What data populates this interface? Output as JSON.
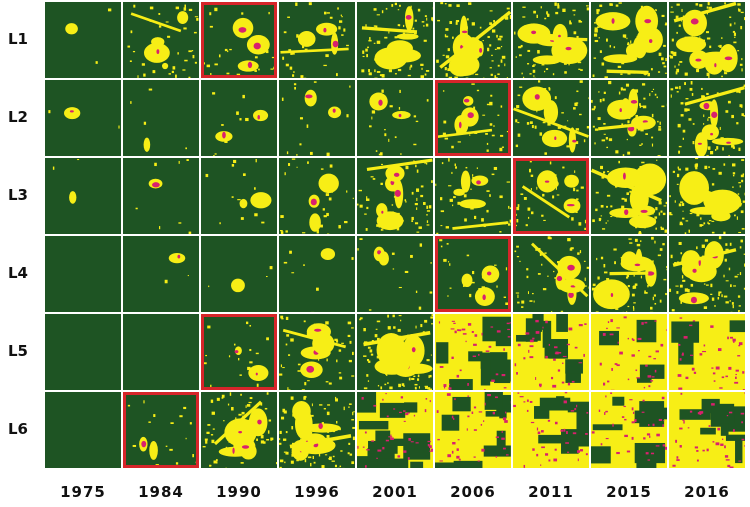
{
  "colors": {
    "forest": "#1e5423",
    "cleared": "#f7ee16",
    "hotspot": "#d9206e",
    "highlight": "#d6252a"
  },
  "rows": [
    {
      "label": "L1",
      "highlight_year": "1990",
      "cleared_fraction": [
        0.01,
        0.18,
        0.14,
        0.16,
        0.32,
        0.35,
        0.3,
        0.34,
        0.36
      ]
    },
    {
      "label": "L2",
      "highlight_year": "2006",
      "cleared_fraction": [
        0.01,
        0.02,
        0.04,
        0.06,
        0.1,
        0.16,
        0.2,
        0.28,
        0.3
      ]
    },
    {
      "label": "L3",
      "highlight_year": "2011",
      "cleared_fraction": [
        0.01,
        0.03,
        0.06,
        0.12,
        0.28,
        0.2,
        0.22,
        0.36,
        0.38
      ]
    },
    {
      "label": "L4",
      "highlight_year": "2006",
      "cleared_fraction": [
        0.0,
        0.01,
        0.02,
        0.03,
        0.06,
        0.12,
        0.22,
        0.32,
        0.34
      ]
    },
    {
      "label": "L5",
      "highlight_year": "1990",
      "cleared_fraction": [
        0.0,
        0.0,
        0.08,
        0.2,
        0.4,
        0.7,
        0.66,
        0.95,
        0.96
      ]
    },
    {
      "label": "L6",
      "highlight_year": "1984",
      "cleared_fraction": [
        0.0,
        0.08,
        0.3,
        0.42,
        0.62,
        0.72,
        0.8,
        0.8,
        0.78
      ]
    }
  ],
  "years": [
    "1975",
    "1984",
    "1990",
    "1996",
    "2001",
    "2006",
    "2011",
    "2015",
    "2016"
  ]
}
